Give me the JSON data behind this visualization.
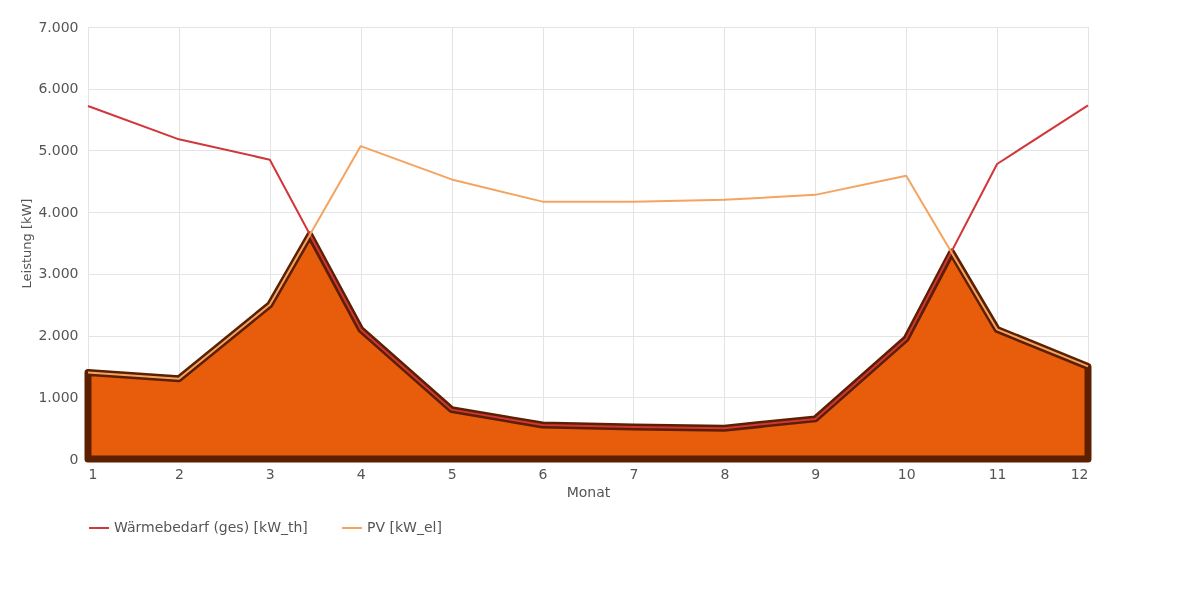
{
  "chart_data": {
    "type": "line",
    "xlabel": "Monat",
    "ylabel": "Leistung [kW]",
    "x": [
      1,
      2,
      3,
      4,
      5,
      6,
      7,
      8,
      9,
      10,
      11,
      12
    ],
    "xlim": [
      1,
      12
    ],
    "xticks": [
      1,
      2,
      3,
      4,
      5,
      6,
      7,
      8,
      9,
      10,
      11,
      12
    ],
    "ylim": [
      0,
      7000
    ],
    "yticks": [
      0,
      {
        "value": 1000,
        "label": "1.000"
      },
      {
        "value": 2000,
        "label": "2.000"
      },
      {
        "value": 3000,
        "label": "3.000"
      },
      {
        "value": 4000,
        "label": "4.000"
      },
      {
        "value": 5000,
        "label": "5.000"
      },
      {
        "value": 6000,
        "label": "6.000"
      },
      {
        "value": 7000,
        "label": "7.000"
      }
    ],
    "grid": true,
    "legend": "bottom",
    "marker": "none",
    "line_style": "solid",
    "series": [
      {
        "type": "area",
        "color": "#e85d0c",
        "x": [
          1,
          2,
          3,
          3.44,
          4,
          5,
          6,
          7,
          8,
          9,
          10,
          10.5,
          11,
          12
        ],
        "values": [
          1400,
          1300,
          2500,
          3630,
          2100,
          800,
          550,
          520,
          500,
          650,
          1950,
          3350,
          2100,
          1500
        ]
      },
      {
        "name": "Wärmebedarf (ges) [kW_th]",
        "color": "#d0363a",
        "values": [
          5720,
          5180,
          4850,
          2100,
          800,
          550,
          520,
          500,
          650,
          1950,
          4780,
          5730
        ]
      },
      {
        "name": "PV [kW_el]",
        "color": "#f4a460",
        "values": [
          1400,
          1300,
          2500,
          5070,
          4530,
          4170,
          4170,
          4200,
          4280,
          4590,
          2100,
          1500
        ]
      }
    ]
  }
}
